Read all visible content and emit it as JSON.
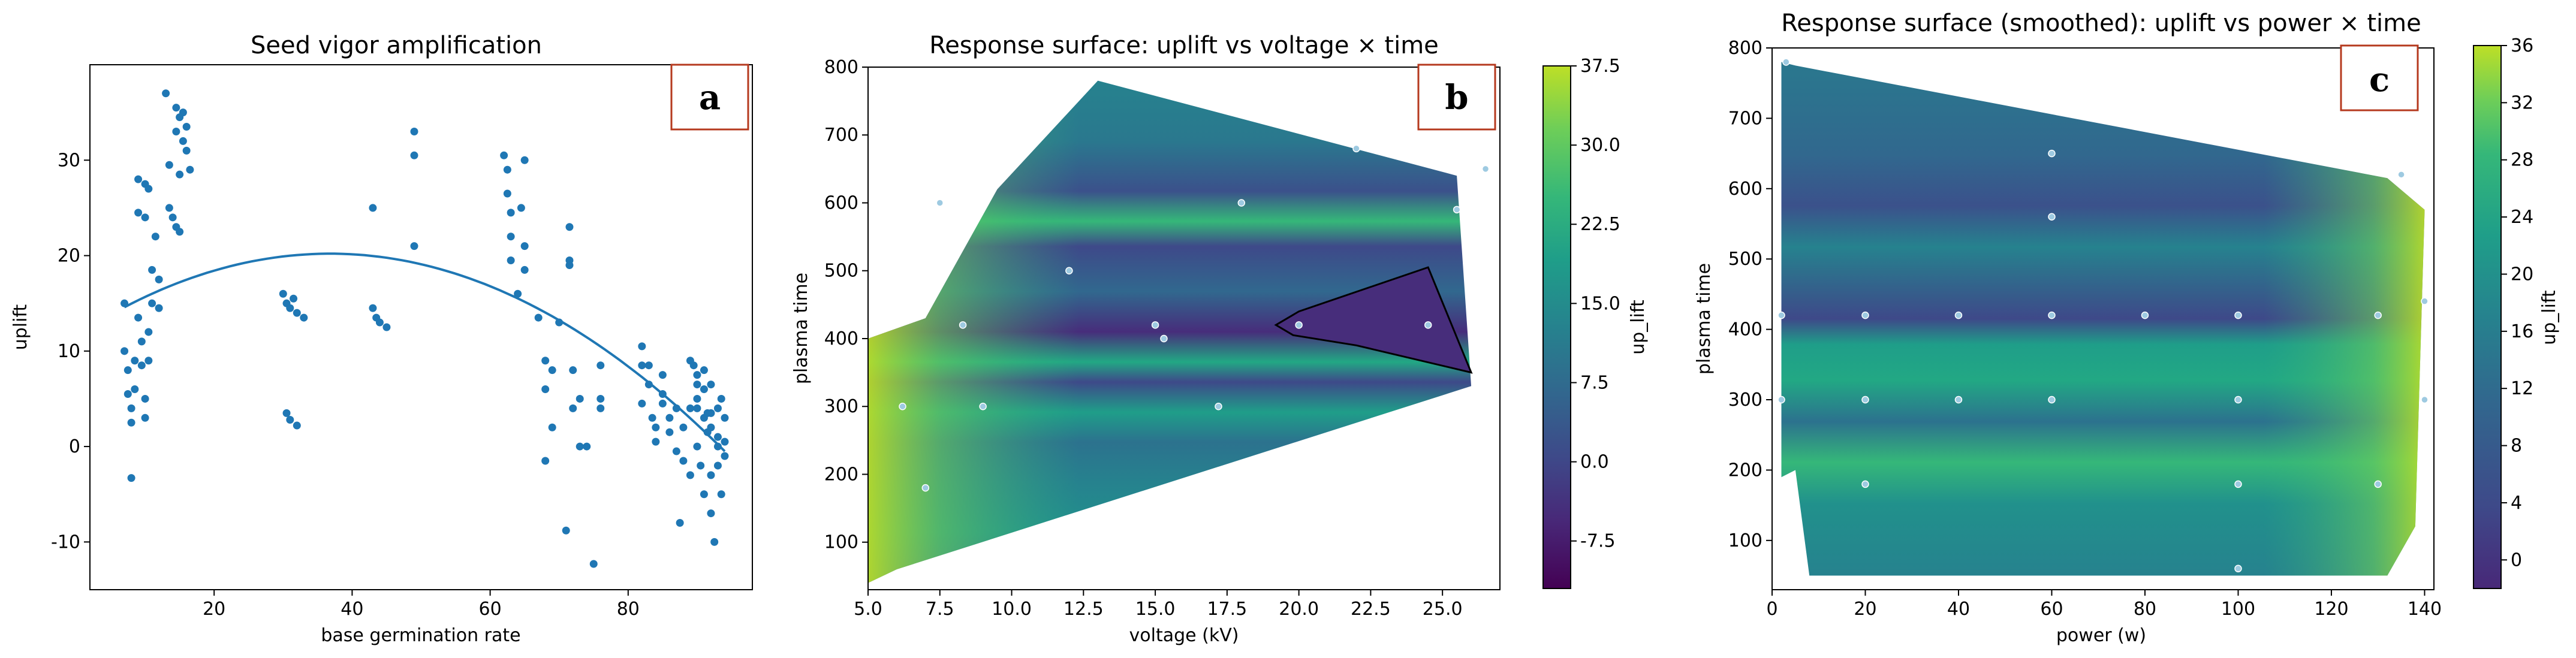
{
  "colors": {
    "scatter": "#1f77b4",
    "fit": "#1f77b4",
    "badge_border": "#b5391e",
    "contour_line": "#000000"
  },
  "chart_data": [
    {
      "type": "scatter",
      "title": "Seed vigor amplification",
      "xlabel": "base germination rate",
      "ylabel": "uplift",
      "xlim": [
        2,
        98
      ],
      "ylim": [
        -15,
        40
      ],
      "xticks": [
        20,
        40,
        60,
        80
      ],
      "yticks": [
        -10,
        0,
        10,
        20,
        30
      ],
      "badge": "a",
      "fit_curve": {
        "type": "quadratic",
        "x": [
          7,
          36,
          94
        ],
        "y": [
          14.6,
          20.2,
          -0.5
        ]
      },
      "points": [
        [
          7,
          15
        ],
        [
          7,
          10
        ],
        [
          7.5,
          8
        ],
        [
          7.5,
          5.5
        ],
        [
          8,
          4
        ],
        [
          8,
          2.5
        ],
        [
          8,
          -3.3
        ],
        [
          8.5,
          9
        ],
        [
          8.5,
          6
        ],
        [
          9,
          24.5
        ],
        [
          9,
          28
        ],
        [
          9,
          13.5
        ],
        [
          9.5,
          11
        ],
        [
          9.5,
          8.5
        ],
        [
          10,
          27.5
        ],
        [
          10,
          24
        ],
        [
          10,
          5
        ],
        [
          10,
          3
        ],
        [
          10.5,
          27
        ],
        [
          10.5,
          12
        ],
        [
          10.5,
          9
        ],
        [
          11,
          18.5
        ],
        [
          11,
          15
        ],
        [
          11.5,
          22
        ],
        [
          12,
          17.5
        ],
        [
          12,
          14.5
        ],
        [
          13,
          37
        ],
        [
          13.5,
          29.5
        ],
        [
          13.5,
          25
        ],
        [
          14,
          24
        ],
        [
          14.5,
          35.5
        ],
        [
          14.5,
          33
        ],
        [
          14.5,
          23
        ],
        [
          15,
          34.5
        ],
        [
          15,
          28.5
        ],
        [
          15,
          22.5
        ],
        [
          15.5,
          35
        ],
        [
          15.5,
          32
        ],
        [
          16,
          33.5
        ],
        [
          16,
          31
        ],
        [
          16.5,
          29
        ],
        [
          30,
          16
        ],
        [
          30.5,
          15
        ],
        [
          30.5,
          3.5
        ],
        [
          31,
          14.5
        ],
        [
          31,
          2.8
        ],
        [
          31.5,
          15.5
        ],
        [
          32,
          14
        ],
        [
          32,
          2.2
        ],
        [
          33,
          13.5
        ],
        [
          43,
          25
        ],
        [
          43,
          14.5
        ],
        [
          43.5,
          13.5
        ],
        [
          44,
          13
        ],
        [
          45,
          12.5
        ],
        [
          49,
          33
        ],
        [
          49,
          30.5
        ],
        [
          49,
          21
        ],
        [
          62,
          30.5
        ],
        [
          62.5,
          29
        ],
        [
          62.5,
          26.5
        ],
        [
          63,
          24.5
        ],
        [
          63,
          22
        ],
        [
          63,
          19.5
        ],
        [
          64,
          16
        ],
        [
          64.5,
          25
        ],
        [
          65,
          30
        ],
        [
          65,
          21
        ],
        [
          65,
          18.5
        ],
        [
          67,
          13.5
        ],
        [
          68,
          9
        ],
        [
          68,
          6
        ],
        [
          68,
          -1.5
        ],
        [
          69,
          8
        ],
        [
          69,
          2
        ],
        [
          70,
          13
        ],
        [
          71,
          -8.8
        ],
        [
          71.5,
          23
        ],
        [
          71.5,
          19.5
        ],
        [
          71.5,
          19
        ],
        [
          72,
          8
        ],
        [
          72,
          4
        ],
        [
          73,
          5
        ],
        [
          73,
          0
        ],
        [
          74,
          0
        ],
        [
          75,
          -12.3
        ],
        [
          76,
          8.5
        ],
        [
          76,
          5
        ],
        [
          76,
          4
        ],
        [
          82,
          10.5
        ],
        [
          82,
          8.5
        ],
        [
          82,
          4.5
        ],
        [
          83,
          8.5
        ],
        [
          83,
          6.5
        ],
        [
          83.5,
          3
        ],
        [
          84,
          2
        ],
        [
          84,
          0.5
        ],
        [
          85,
          7.5
        ],
        [
          85,
          5.5
        ],
        [
          85,
          4.5
        ],
        [
          86,
          3
        ],
        [
          86,
          1.5
        ],
        [
          87,
          4
        ],
        [
          87,
          -0.5
        ],
        [
          87.5,
          -8
        ],
        [
          88,
          2
        ],
        [
          88,
          -1.5
        ],
        [
          89,
          9
        ],
        [
          89,
          4
        ],
        [
          89,
          -3
        ],
        [
          89.5,
          8.5
        ],
        [
          90,
          7.5
        ],
        [
          90,
          6.5
        ],
        [
          90,
          5
        ],
        [
          90,
          4
        ],
        [
          90,
          0
        ],
        [
          90.5,
          -2
        ],
        [
          91,
          8
        ],
        [
          91,
          6
        ],
        [
          91,
          3
        ],
        [
          91,
          -5
        ],
        [
          91.5,
          3.5
        ],
        [
          91.5,
          1.5
        ],
        [
          92,
          6.5
        ],
        [
          92,
          3.5
        ],
        [
          92,
          2
        ],
        [
          92,
          -3
        ],
        [
          92,
          -7
        ],
        [
          92.5,
          -10
        ],
        [
          93,
          4
        ],
        [
          93,
          1
        ],
        [
          93,
          0
        ],
        [
          93,
          -2
        ],
        [
          93.5,
          -5
        ],
        [
          93.5,
          5
        ],
        [
          94,
          3
        ],
        [
          94,
          0.5
        ],
        [
          94,
          -1
        ]
      ]
    },
    {
      "type": "heatmap",
      "title": "Response surface: uplift vs voltage × time",
      "xlabel": "voltage (kV)",
      "ylabel": "plasma time",
      "colorbar_label": "up_lift",
      "xlim": [
        5.0,
        27.0
      ],
      "ylim": [
        30,
        800
      ],
      "xticks": [
        "5.0",
        "7.5",
        "10.0",
        "12.5",
        "15.0",
        "17.5",
        "20.0",
        "22.5",
        "25.0"
      ],
      "yticks": [
        100,
        200,
        300,
        400,
        500,
        600,
        700,
        800
      ],
      "colorbar_ticks": [
        "37.5",
        "30.0",
        "22.5",
        "15.0",
        "7.5",
        "0.0",
        "-7.5"
      ],
      "colorbar_range": [
        -12,
        37.5
      ],
      "hull": [
        [
          13,
          780
        ],
        [
          25.5,
          640
        ],
        [
          26,
          330
        ],
        [
          6,
          60
        ],
        [
          5,
          40
        ],
        [
          5,
          400
        ],
        [
          7,
          430
        ],
        [
          9.5,
          620
        ]
      ],
      "contour_region": [
        [
          19.2,
          420
        ],
        [
          20,
          440
        ],
        [
          24.5,
          505
        ],
        [
          26,
          350
        ],
        [
          22,
          390
        ],
        [
          19.8,
          405
        ]
      ],
      "badge": "b",
      "samples": [
        [
          8.3,
          420
        ],
        [
          15,
          420
        ],
        [
          15.3,
          400
        ],
        [
          17.2,
          300
        ],
        [
          20,
          420
        ],
        [
          24.5,
          420
        ],
        [
          25.5,
          590
        ],
        [
          7.5,
          600
        ],
        [
          12,
          500
        ],
        [
          18,
          600
        ],
        [
          22,
          680
        ],
        [
          26.5,
          650
        ],
        [
          6.2,
          300
        ],
        [
          9,
          300
        ],
        [
          7,
          180
        ]
      ]
    },
    {
      "type": "heatmap",
      "title": "Response surface (smoothed): uplift vs power × time",
      "xlabel": "power (w)",
      "ylabel": "plasma time",
      "colorbar_label": "up_lift",
      "xlim": [
        0,
        142
      ],
      "ylim": [
        30,
        800
      ],
      "xticks": [
        0,
        20,
        40,
        60,
        80,
        100,
        120,
        140
      ],
      "yticks": [
        100,
        200,
        300,
        400,
        500,
        600,
        700,
        800
      ],
      "colorbar_ticks": [
        "36",
        "32",
        "28",
        "24",
        "20",
        "16",
        "12",
        "8",
        "4",
        "0"
      ],
      "colorbar_range": [
        -2,
        36
      ],
      "hull": [
        [
          5,
          775
        ],
        [
          132,
          615
        ],
        [
          140,
          570
        ],
        [
          138,
          120
        ],
        [
          132,
          50
        ],
        [
          8,
          50
        ],
        [
          5,
          200
        ],
        [
          2,
          190
        ],
        [
          2,
          780
        ]
      ],
      "badge": "c",
      "samples": [
        [
          2,
          420
        ],
        [
          2,
          300
        ],
        [
          20,
          420
        ],
        [
          40,
          420
        ],
        [
          60,
          420
        ],
        [
          80,
          420
        ],
        [
          100,
          420
        ],
        [
          60,
          560
        ],
        [
          100,
          300
        ],
        [
          100,
          180
        ],
        [
          60,
          300
        ],
        [
          20,
          180
        ],
        [
          130,
          420
        ],
        [
          135,
          620
        ],
        [
          140,
          300
        ],
        [
          140,
          440
        ],
        [
          3,
          780
        ],
        [
          60,
          650
        ],
        [
          40,
          300
        ],
        [
          20,
          300
        ],
        [
          130,
          180
        ],
        [
          100,
          60
        ]
      ]
    }
  ]
}
